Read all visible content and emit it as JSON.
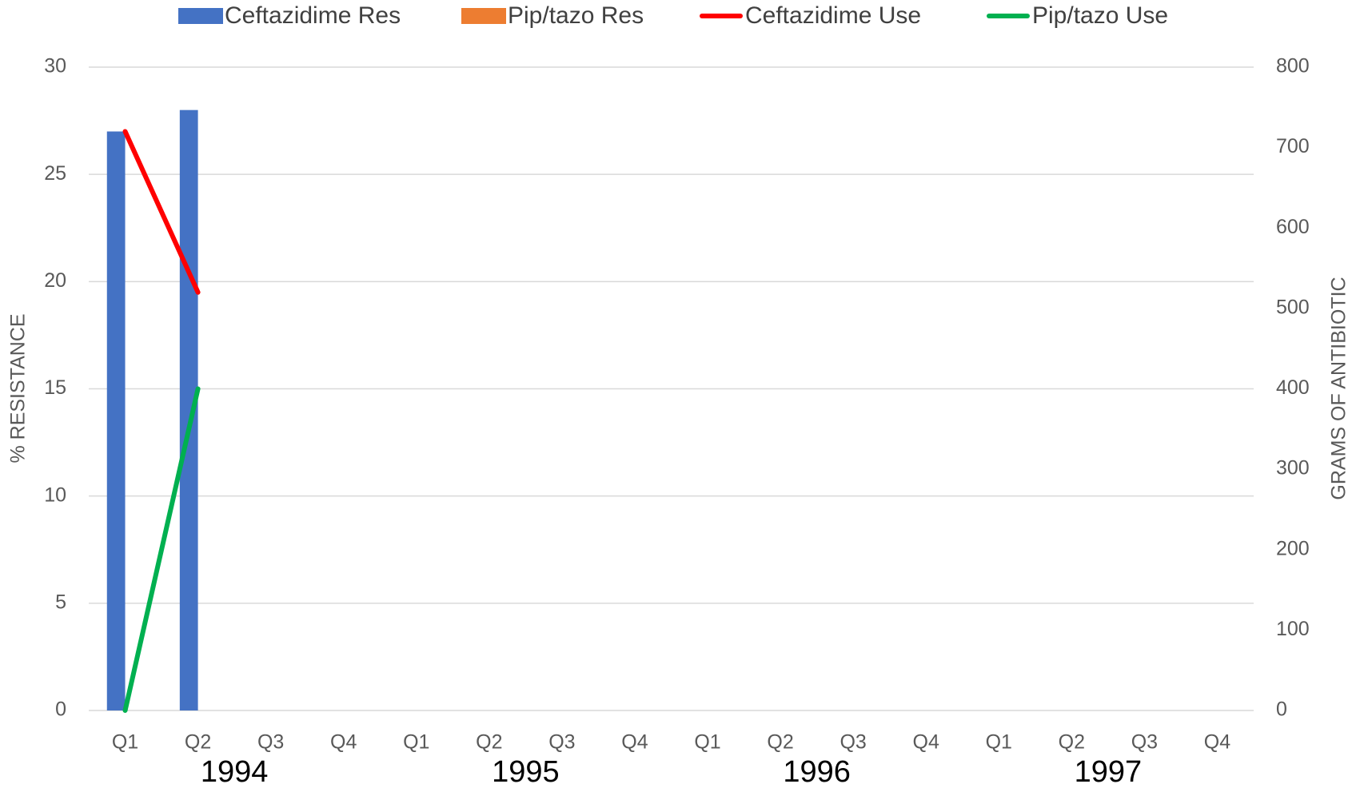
{
  "chart_data": {
    "type": "bar-line",
    "y_label": "% RESISTANCE",
    "y2_label": "GRAMS OF ANTIBIOTIC",
    "categories": [
      "Q1",
      "Q2",
      "Q3",
      "Q4",
      "Q1",
      "Q2",
      "Q3",
      "Q4",
      "Q1",
      "Q2",
      "Q3",
      "Q4",
      "Q1",
      "Q2",
      "Q3",
      "Q4"
    ],
    "years": [
      "1994",
      "1995",
      "1996",
      "1997"
    ],
    "series": [
      {
        "name": "Ceftazidime Res",
        "type": "bar",
        "color": "#4472c4",
        "values": [
          27,
          28,
          null,
          null,
          null,
          null,
          null,
          null,
          null,
          null,
          null,
          null,
          null,
          null,
          null,
          null
        ]
      },
      {
        "name": "Pip/tazo Res",
        "type": "bar",
        "color": "#ed7d31",
        "values": [
          null,
          null,
          null,
          null,
          null,
          null,
          null,
          null,
          null,
          null,
          null,
          null,
          null,
          null,
          null,
          null
        ]
      },
      {
        "name": "Ceftazidime Use",
        "type": "line",
        "axis": "y2",
        "color": "#ff0000",
        "values": [
          720,
          520,
          null,
          null,
          null,
          null,
          null,
          null,
          null,
          null,
          null,
          null,
          null,
          null,
          null,
          null
        ]
      },
      {
        "name": "Pip/tazo Use",
        "type": "line",
        "axis": "y2",
        "color": "#00b050",
        "values": [
          0,
          400,
          null,
          null,
          null,
          null,
          null,
          null,
          null,
          null,
          null,
          null,
          null,
          null,
          null,
          null
        ]
      }
    ],
    "ylim": [
      0,
      30
    ],
    "yticks": [
      0,
      5,
      10,
      15,
      20,
      25,
      30
    ],
    "y2lim": [
      0,
      800
    ],
    "y2ticks": [
      0,
      100,
      200,
      300,
      400,
      500,
      600,
      700,
      800
    ],
    "grid": true,
    "legend": "top"
  }
}
